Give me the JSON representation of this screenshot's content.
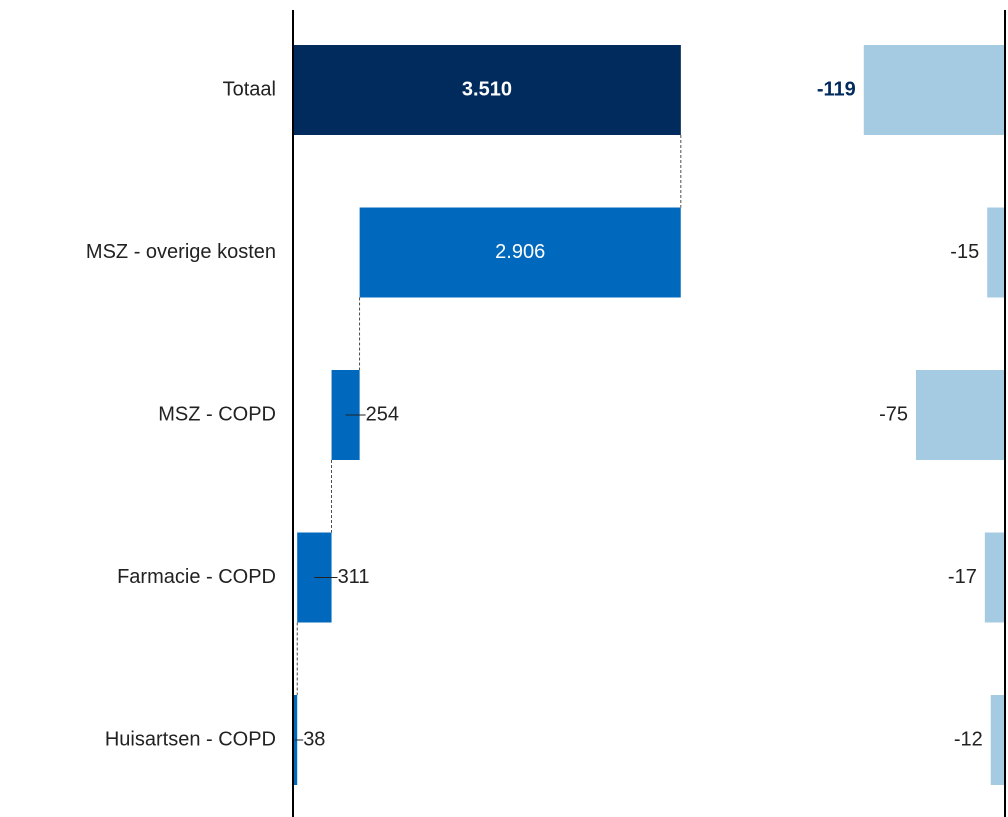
{
  "chart_data": [
    {
      "type": "waterfall",
      "categories": [
        "Totaal",
        "MSZ - overige kosten",
        "MSZ - COPD",
        "Farmacie - COPD",
        "Huisartsen - COPD"
      ],
      "values": [
        3510,
        2906,
        254,
        311,
        38
      ],
      "value_labels": [
        "3.510",
        "2.906",
        "254",
        "311",
        "38"
      ],
      "total_color": "#002b5c",
      "color": "#0069be",
      "xlim": [
        0,
        4000
      ]
    },
    {
      "type": "bar",
      "values": [
        -119,
        -15,
        -75,
        -17,
        -12
      ],
      "color": "#a5cbe2",
      "label_color": "#002b5c",
      "xlim": [
        -150,
        0
      ]
    }
  ]
}
